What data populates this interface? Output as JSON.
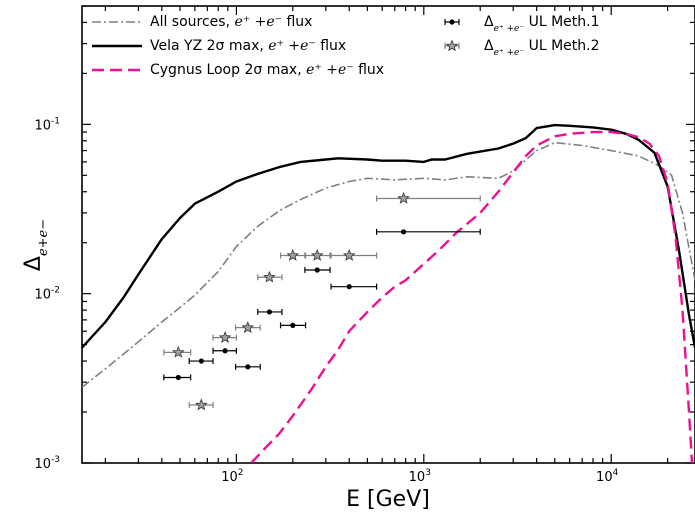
{
  "chart_data": {
    "type": "line",
    "xlabel": "E [GeV]",
    "ylabel": "Δe+e−",
    "xscale": "log",
    "yscale": "log",
    "xlim": [
      15,
      28000
    ],
    "ylim": [
      0.001,
      0.5
    ],
    "x_ticks": [
      {
        "value": 100,
        "mantissa": "10",
        "exp": "2"
      },
      {
        "value": 1000,
        "mantissa": "10",
        "exp": "3"
      },
      {
        "value": 10000,
        "mantissa": "10",
        "exp": "4"
      }
    ],
    "y_ticks": [
      {
        "value": 0.001,
        "mantissa": "10",
        "exp": "-3"
      },
      {
        "value": 0.01,
        "mantissa": "10",
        "exp": "-2"
      },
      {
        "value": 0.1,
        "mantissa": "10",
        "exp": "-1"
      }
    ],
    "grid": false,
    "legend_position": "top",
    "series": [
      {
        "name": "All sources, e+ +e− flux",
        "legend_text": "All sources,",
        "legend_math": "e⁺ +e⁻",
        "legend_suffix": "flux",
        "color": "#808080",
        "dash": "9,3,2,3",
        "width": 1.6,
        "x": [
          15,
          20,
          25,
          30,
          40,
          50,
          60,
          80,
          100,
          130,
          170,
          220,
          300,
          400,
          500,
          700,
          1000,
          1300,
          1700,
          2500,
          3000,
          4000,
          5000,
          7000,
          10000,
          14000,
          18000,
          21000,
          24000,
          28000
        ],
        "y": [
          0.0028,
          0.0036,
          0.0044,
          0.0052,
          0.0068,
          0.0083,
          0.0098,
          0.0135,
          0.019,
          0.025,
          0.031,
          0.036,
          0.042,
          0.046,
          0.048,
          0.047,
          0.048,
          0.047,
          0.049,
          0.048,
          0.053,
          0.07,
          0.078,
          0.075,
          0.07,
          0.065,
          0.057,
          0.05,
          0.03,
          0.012
        ]
      },
      {
        "name": "Vela YZ 2σ max, e+ +e− flux",
        "legend_text": "Vela YZ 2σ max,",
        "legend_math": "e⁺ +e⁻",
        "legend_suffix": "flux",
        "color": "#000000",
        "dash": "",
        "width": 2.4,
        "x": [
          15,
          20,
          25,
          30,
          40,
          50,
          60,
          80,
          100,
          130,
          170,
          220,
          300,
          350,
          500,
          600,
          700,
          800,
          1000,
          1100,
          1300,
          1700,
          2000,
          2500,
          3000,
          3500,
          4000,
          5000,
          6000,
          8000,
          10000,
          12000,
          14000,
          17000,
          20000,
          23000,
          26000,
          28000
        ],
        "y": [
          0.0048,
          0.0068,
          0.0095,
          0.013,
          0.021,
          0.028,
          0.034,
          0.04,
          0.046,
          0.051,
          0.056,
          0.06,
          0.062,
          0.063,
          0.062,
          0.061,
          0.061,
          0.061,
          0.06,
          0.062,
          0.062,
          0.067,
          0.069,
          0.072,
          0.077,
          0.083,
          0.095,
          0.099,
          0.098,
          0.096,
          0.093,
          0.088,
          0.081,
          0.068,
          0.043,
          0.018,
          0.0075,
          0.0048
        ]
      },
      {
        "name": "Cygnus Loop 2σ max, e+ +e− flux",
        "legend_text": "Cygnus Loop 2σ max,",
        "legend_math": "e⁺ +e⁻",
        "legend_suffix": "flux",
        "color": "#ee1090",
        "dash": "12,6",
        "width": 2.4,
        "x": [
          120,
          140,
          170,
          200,
          250,
          300,
          350,
          400,
          500,
          600,
          700,
          800,
          1000,
          1200,
          1500,
          2000,
          2500,
          3000,
          3500,
          4000,
          5000,
          6000,
          8000,
          10000,
          12000,
          14000,
          16000,
          18000,
          20000,
          22000,
          24000,
          26000,
          27000
        ],
        "y": [
          0.001,
          0.0012,
          0.0015,
          0.0019,
          0.0027,
          0.0037,
          0.0047,
          0.006,
          0.0078,
          0.0095,
          0.011,
          0.012,
          0.015,
          0.018,
          0.023,
          0.03,
          0.04,
          0.052,
          0.065,
          0.075,
          0.085,
          0.088,
          0.09,
          0.09,
          0.088,
          0.084,
          0.077,
          0.065,
          0.045,
          0.022,
          0.008,
          0.002,
          0.001
        ]
      },
      {
        "name": "Δe+e− UL Meth.1",
        "legend_prefix": "Δ",
        "legend_sub": "e⁺ +e⁻",
        "legend_suffix": "UL Meth.1",
        "color": "#000000",
        "marker": "circle",
        "points": [
          {
            "x": 49,
            "y": 0.0032,
            "xlo": 41,
            "xhi": 57
          },
          {
            "x": 65,
            "y": 0.004,
            "xlo": 56,
            "xhi": 75
          },
          {
            "x": 87,
            "y": 0.0046,
            "xlo": 75,
            "xhi": 100
          },
          {
            "x": 115,
            "y": 0.0037,
            "xlo": 99,
            "xhi": 134
          },
          {
            "x": 150,
            "y": 0.0078,
            "xlo": 130,
            "xhi": 175
          },
          {
            "x": 200,
            "y": 0.0065,
            "xlo": 172,
            "xhi": 234
          },
          {
            "x": 270,
            "y": 0.0138,
            "xlo": 232,
            "xhi": 316
          },
          {
            "x": 400,
            "y": 0.011,
            "xlo": 320,
            "xhi": 560
          },
          {
            "x": 780,
            "y": 0.0232,
            "xlo": 560,
            "xhi": 2000
          }
        ]
      },
      {
        "name": "Δe+e− UL Meth.2",
        "legend_prefix": "Δ",
        "legend_sub": "e⁺ +e⁻",
        "legend_suffix": "UL Meth.2",
        "color": "#808080",
        "marker": "star",
        "points": [
          {
            "x": 49,
            "y": 0.0045,
            "xlo": 41,
            "xhi": 57
          },
          {
            "x": 65,
            "y": 0.0022,
            "xlo": 56,
            "xhi": 75
          },
          {
            "x": 87,
            "y": 0.0055,
            "xlo": 75,
            "xhi": 100
          },
          {
            "x": 115,
            "y": 0.0063,
            "xlo": 99,
            "xhi": 134
          },
          {
            "x": 150,
            "y": 0.0125,
            "xlo": 130,
            "xhi": 175
          },
          {
            "x": 200,
            "y": 0.0168,
            "xlo": 172,
            "xhi": 234
          },
          {
            "x": 270,
            "y": 0.0168,
            "xlo": 232,
            "xhi": 316
          },
          {
            "x": 400,
            "y": 0.0168,
            "xlo": 320,
            "xhi": 560
          },
          {
            "x": 780,
            "y": 0.0365,
            "xlo": 560,
            "xhi": 2000
          }
        ]
      }
    ]
  }
}
